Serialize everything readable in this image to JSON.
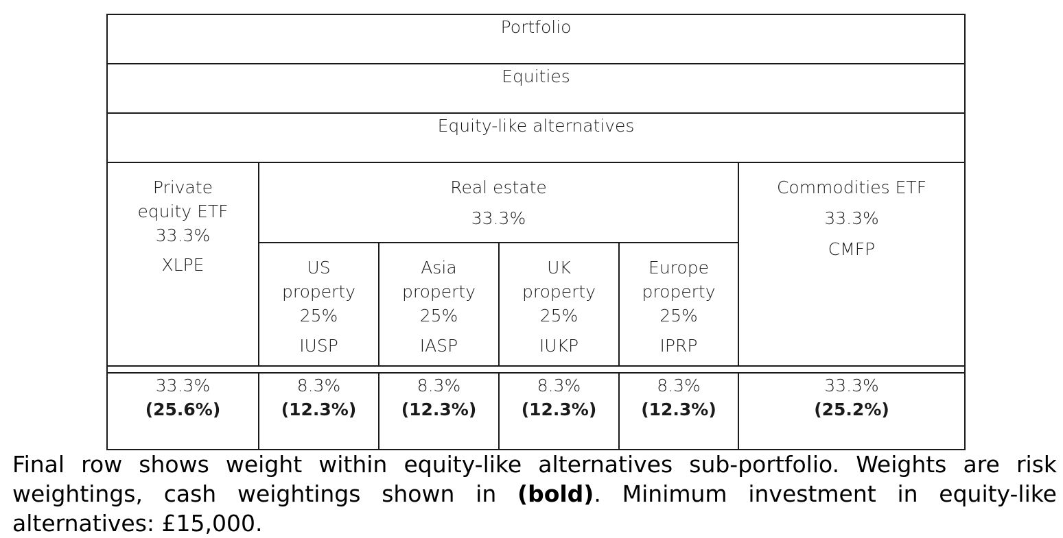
{
  "table": {
    "header_rows": [
      "Portfolio",
      "Equities",
      "Equity-like alternatives"
    ],
    "private_equity": {
      "name_line1": "Private",
      "name_line2": "equity ETF",
      "weight": "33.3%",
      "ticker": "XLPE"
    },
    "real_estate": {
      "name": "Real estate",
      "weight": "33.3%",
      "subs": [
        {
          "line1": "US",
          "line2": "property",
          "weight": "25%",
          "ticker": "IUSP"
        },
        {
          "line1": "Asia",
          "line2": "property",
          "weight": "25%",
          "ticker": "IASP"
        },
        {
          "line1": "UK",
          "line2": "property",
          "weight": "25%",
          "ticker": "IUKP"
        },
        {
          "line1": "Europe",
          "line2": "property",
          "weight": "25%",
          "ticker": "IPRP"
        }
      ]
    },
    "commodities": {
      "name": "Commodities ETF",
      "weight": "33.3%",
      "ticker": "CMFP"
    },
    "final_weights": [
      {
        "risk": "33.3%",
        "cash": "(25.6%)"
      },
      {
        "risk": "8.3%",
        "cash": "(12.3%)"
      },
      {
        "risk": "8.3%",
        "cash": "(12.3%)"
      },
      {
        "risk": "8.3%",
        "cash": "(12.3%)"
      },
      {
        "risk": "8.3%",
        "cash": "(12.3%)"
      },
      {
        "risk": "33.3%",
        "cash": "(25.2%)"
      }
    ]
  },
  "caption": {
    "part1": "Final row shows weight within equity-like alternatives sub-portfolio. Weights are risk weightings, cash weightings shown in ",
    "bold": "(bold)",
    "part2": ". Minimum investment in equity-like alternatives: £15,000."
  }
}
